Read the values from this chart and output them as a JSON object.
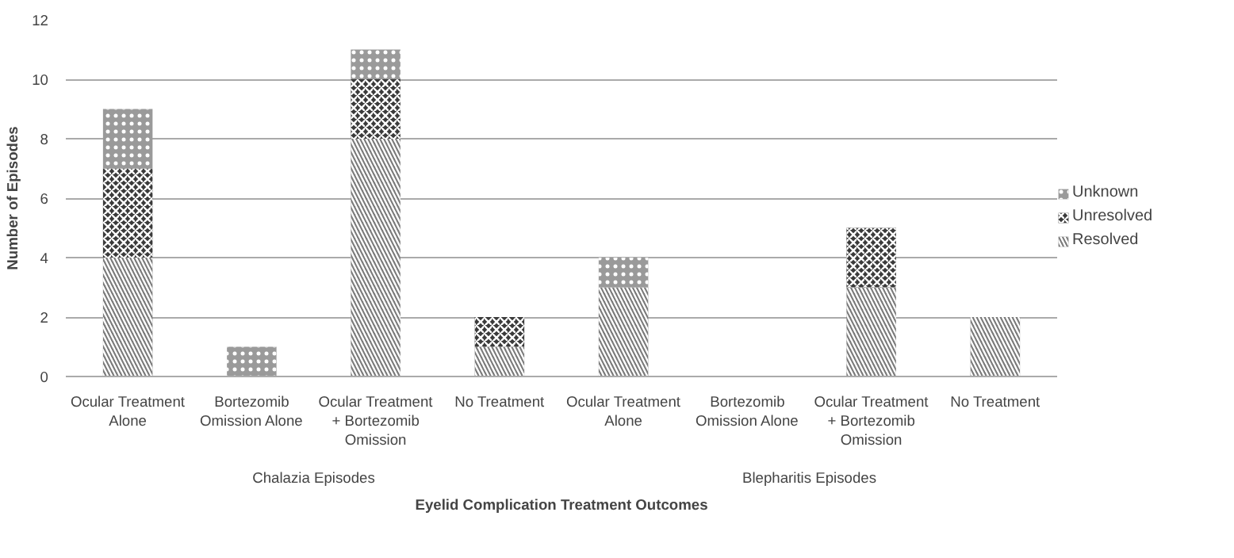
{
  "chart_data": {
    "type": "bar",
    "stacked": true,
    "xlabel": "Eyelid Complication Treatment Outcomes",
    "ylabel": "Number of Episodes",
    "categories": [
      "Ocular Treatment\nAlone",
      "Bortezomib\nOmission Alone",
      "Ocular Treatment\n+ Bortezomib\nOmission",
      "No Treatment",
      "Ocular Treatment\nAlone",
      "Bortezomib\nOmission Alone",
      "Ocular Treatment\n+ Bortezomib\nOmission",
      "No Treatment"
    ],
    "annotations": [
      "Chalazia Episodes",
      "Blepharitis Episodes"
    ],
    "series": [
      {
        "name": "Resolved",
        "color": "#7a7a7a",
        "values": [
          4,
          0,
          8,
          1,
          3,
          0,
          3,
          2
        ]
      },
      {
        "name": "Unresolved",
        "color": "#3a3a3a",
        "values": [
          3,
          0,
          2,
          1,
          0,
          0,
          2,
          0
        ]
      },
      {
        "name": "Unknown",
        "color": "#9a9a9a",
        "values": [
          2,
          1,
          1,
          0,
          1,
          0,
          0,
          0
        ]
      }
    ],
    "ylim": [
      0,
      12
    ],
    "yticks": [
      0,
      2,
      4,
      6,
      8,
      10,
      12
    ],
    "grid": "y",
    "legend": "right"
  }
}
